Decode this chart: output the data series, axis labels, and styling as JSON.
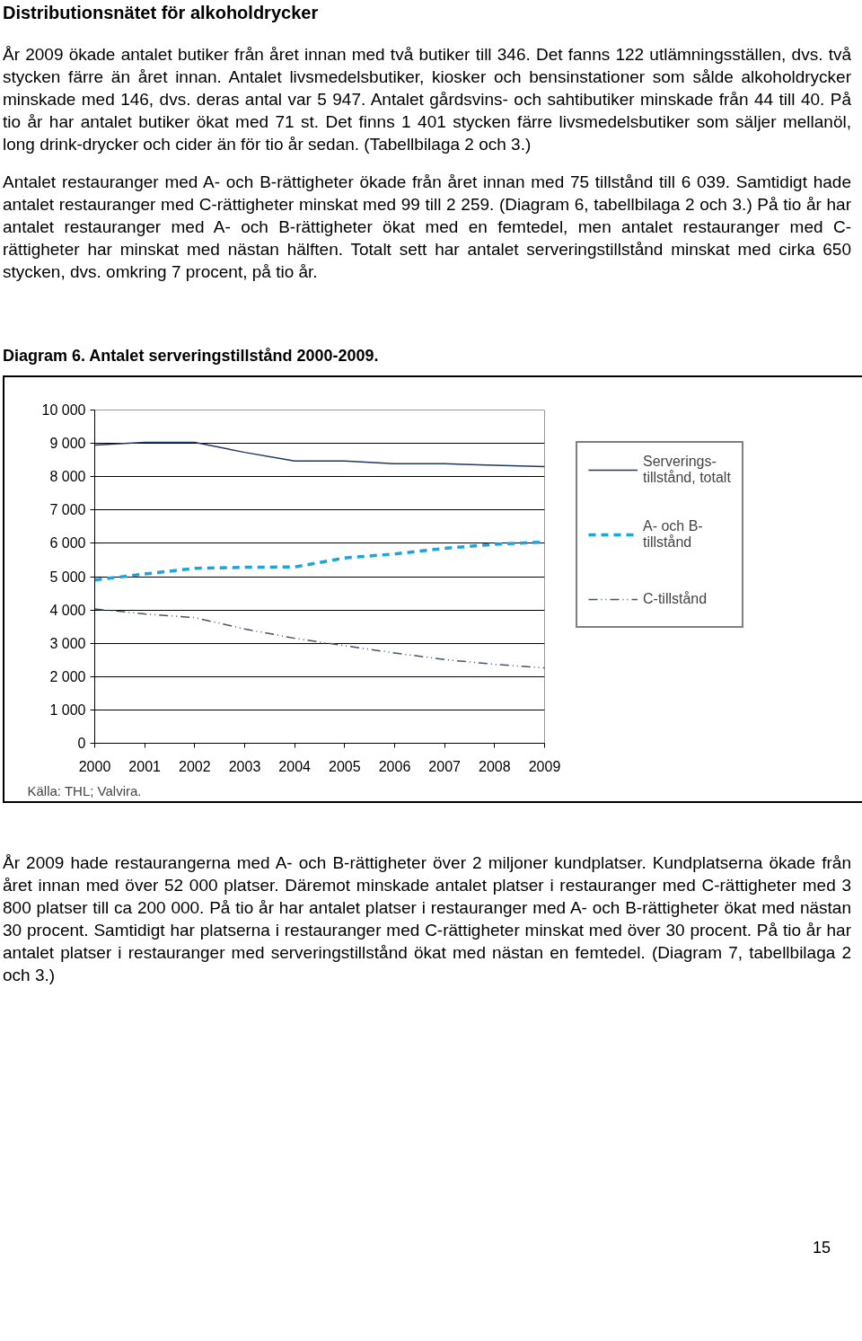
{
  "chart_data": {
    "type": "line",
    "title": "Diagram 6. Antalet serveringstillstånd 2000-2009.",
    "x": [
      2000,
      2001,
      2002,
      2003,
      2004,
      2005,
      2006,
      2007,
      2008,
      2009
    ],
    "series": [
      {
        "name": "Serverings- tillstånd, totalt",
        "color": "#1f3864",
        "line_style": "solid",
        "values": [
          8950,
          9030,
          9030,
          8730,
          8470,
          8470,
          8390,
          8390,
          8340,
          8300
        ]
      },
      {
        "name": "A- och B- tillstånd",
        "color": "#1fa3dc",
        "line_style": "dashed",
        "values": [
          4900,
          5080,
          5250,
          5280,
          5290,
          5560,
          5680,
          5850,
          5970,
          6040
        ]
      },
      {
        "name": "C-tillstånd",
        "color": "#44546a",
        "line_style": "dashdot",
        "values": [
          4030,
          3880,
          3770,
          3430,
          3150,
          2930,
          2710,
          2510,
          2370,
          2260
        ]
      }
    ],
    "xlim": [
      2000,
      2009
    ],
    "xticks": [
      2000,
      2001,
      2002,
      2003,
      2004,
      2005,
      2006,
      2007,
      2008,
      2009
    ],
    "ylim": [
      0,
      10000
    ],
    "yticks": [
      0,
      {
        "value": 1000,
        "label": "1 000"
      },
      {
        "value": 2000,
        "label": "2 000"
      },
      {
        "value": 3000,
        "label": "3 000"
      },
      {
        "value": 4000,
        "label": "4 000"
      },
      {
        "value": 5000,
        "label": "5 000"
      },
      {
        "value": 6000,
        "label": "6 000"
      },
      {
        "value": 7000,
        "label": "7 000"
      },
      {
        "value": 8000,
        "label": "8 000"
      },
      {
        "value": 9000,
        "label": "9 000"
      },
      {
        "value": 10000,
        "label": "10 000"
      }
    ],
    "grid": "y",
    "legend": "right",
    "marker": "none",
    "annotations": [
      "Distributionsnätet för alkoholdrycker",
      "År 2009 ökade antalet butiker från året innan med två butiker till 346. Det fanns 122 utlämningsställen, dvs. två stycken färre än året innan. Antalet livsmedelsbutiker, kiosker och bensinstationer som sålde alkoholdrycker minskade med 146, dvs. deras antal var 5 947. Antalet gårdsvins- och sahtibutiker minskade från 44 till 40. På tio år har antalet butiker ökat med 71 st. Det finns 1 401 stycken färre livsmedelsbutiker som säljer mellanöl, long drink-drycker och cider än för tio år sedan. (Tabellbilaga 2 och 3.)",
      "Antalet restauranger med A- och B-rättigheter ökade från året innan med 75 tillstånd till 6 039. Samtidigt hade antalet restauranger med C-rättigheter minskat med 99 till 2 259. (Diagram 6, tabellbilaga 2 och 3.) På tio år har antalet restauranger med A- och B-rättigheter ökat med en femtedel, men antalet restauranger med C-rättigheter har minskat med nästan hälften. Totalt sett har antalet serveringstillstånd minskat med cirka 650 stycken, dvs. omkring 7 procent, på tio år.",
      "Källa: THL; Valvira.",
      "År 2009 hade restaurangerna med A- och B-rättigheter över 2 miljoner kundplatser. Kundplatserna ökade från året innan med över 52 000 platser. Däremot minskade antalet platser i restauranger med C-rättigheter med 3 800 platser till ca 200 000. På tio år har antalet platser i restauranger med A- och B-rättigheter ökat med nästan 30 procent. Samtidigt har platserna i restauranger med C-rättigheter minskat med över 30 procent. På tio år har antalet platser i restauranger med serveringstillstånd ökat med nästan en femtedel. (Diagram 7, tabellbilaga 2 och 3.)",
      "15"
    ]
  }
}
